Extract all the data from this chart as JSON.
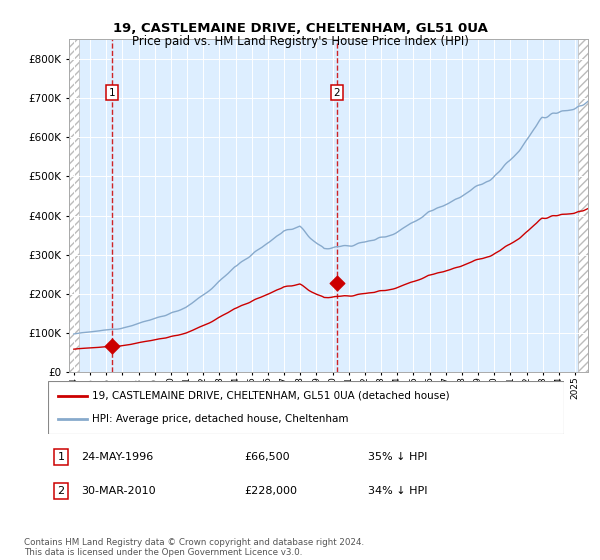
{
  "title": "19, CASTLEMAINE DRIVE, CHELTENHAM, GL51 0UA",
  "subtitle": "Price paid vs. HM Land Registry's House Price Index (HPI)",
  "sale1_date_label": "24-MAY-1996",
  "sale1_price": 66500,
  "sale1_hpi_diff": "35% ↓ HPI",
  "sale2_date_label": "30-MAR-2010",
  "sale2_price": 228000,
  "sale2_hpi_diff": "34% ↓ HPI",
  "legend_red": "19, CASTLEMAINE DRIVE, CHELTENHAM, GL51 0UA (detached house)",
  "legend_blue": "HPI: Average price, detached house, Cheltenham",
  "footer": "Contains HM Land Registry data © Crown copyright and database right 2024.\nThis data is licensed under the Open Government Licence v3.0.",
  "color_red": "#cc0000",
  "color_blue": "#88aacc",
  "background_plot": "#ddeeff",
  "ylim_max": 850000,
  "sale1_year": 1996.38,
  "sale2_year": 2010.25,
  "xlim_min": 1993.7,
  "xlim_max": 2025.8
}
